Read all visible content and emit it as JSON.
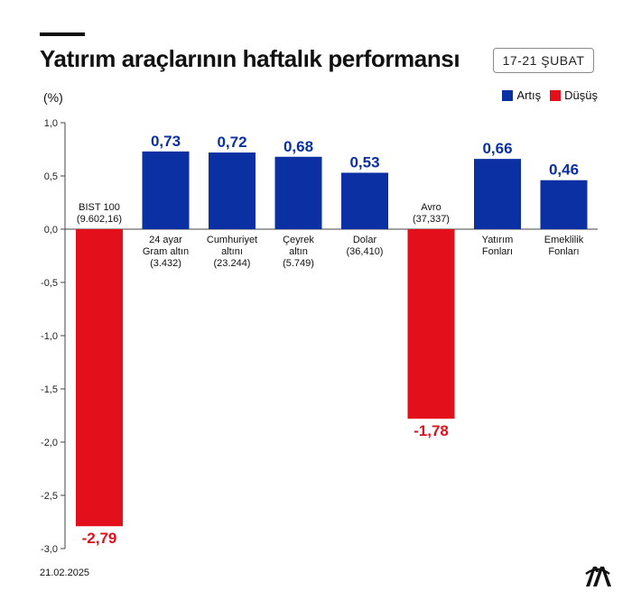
{
  "header": {
    "title": "Yatırım araçlarının haftalık performansı",
    "date_range": "17-21 ŞUBAT"
  },
  "footer": {
    "date": "21.02.2025"
  },
  "logo": {
    "icon": "aa-logo-icon"
  },
  "colors": {
    "positive": "#0a30a3",
    "negative": "#e3101c"
  },
  "chart_data": {
    "type": "bar",
    "title": "Yatırım araçlarının haftalık performansı",
    "ylabel": "(%)",
    "ylim": [
      -3.0,
      1.0
    ],
    "yticks": [
      "1,0",
      "0,5",
      "0,0",
      "-0,5",
      "-1,0",
      "-1,5",
      "-2,0",
      "-2,5",
      "-3,0"
    ],
    "ytick_values": [
      1.0,
      0.5,
      0.0,
      -0.5,
      -1.0,
      -1.5,
      -2.0,
      -2.5,
      -3.0
    ],
    "grid": false,
    "legend": {
      "placement": "top-right",
      "entries": [
        {
          "name": "Artış",
          "color": "#0a30a3"
        },
        {
          "name": "Düşüş",
          "color": "#e3101c"
        }
      ]
    },
    "categories": [
      {
        "lines": [
          "BIST 100",
          "(9.602,16)"
        ],
        "value": -2.79,
        "value_label": "-2,79"
      },
      {
        "lines": [
          "24 ayar",
          "Gram altın",
          "(3.432)"
        ],
        "value": 0.73,
        "value_label": "0,73"
      },
      {
        "lines": [
          "Cumhuriyet",
          "altını",
          "(23.244)"
        ],
        "value": 0.72,
        "value_label": "0,72"
      },
      {
        "lines": [
          "Çeyrek",
          "altın",
          "(5.749)"
        ],
        "value": 0.68,
        "value_label": "0,68"
      },
      {
        "lines": [
          "Dolar",
          "(36,410)"
        ],
        "value": 0.53,
        "value_label": "0,53"
      },
      {
        "lines": [
          "Avro",
          "(37,337)"
        ],
        "value": -1.78,
        "value_label": "-1,78"
      },
      {
        "lines": [
          "Yatırım",
          "Fonları"
        ],
        "value": 0.66,
        "value_label": "0,66"
      },
      {
        "lines": [
          "Emeklilik",
          "Fonları"
        ],
        "value": 0.46,
        "value_label": "0,46"
      }
    ]
  }
}
